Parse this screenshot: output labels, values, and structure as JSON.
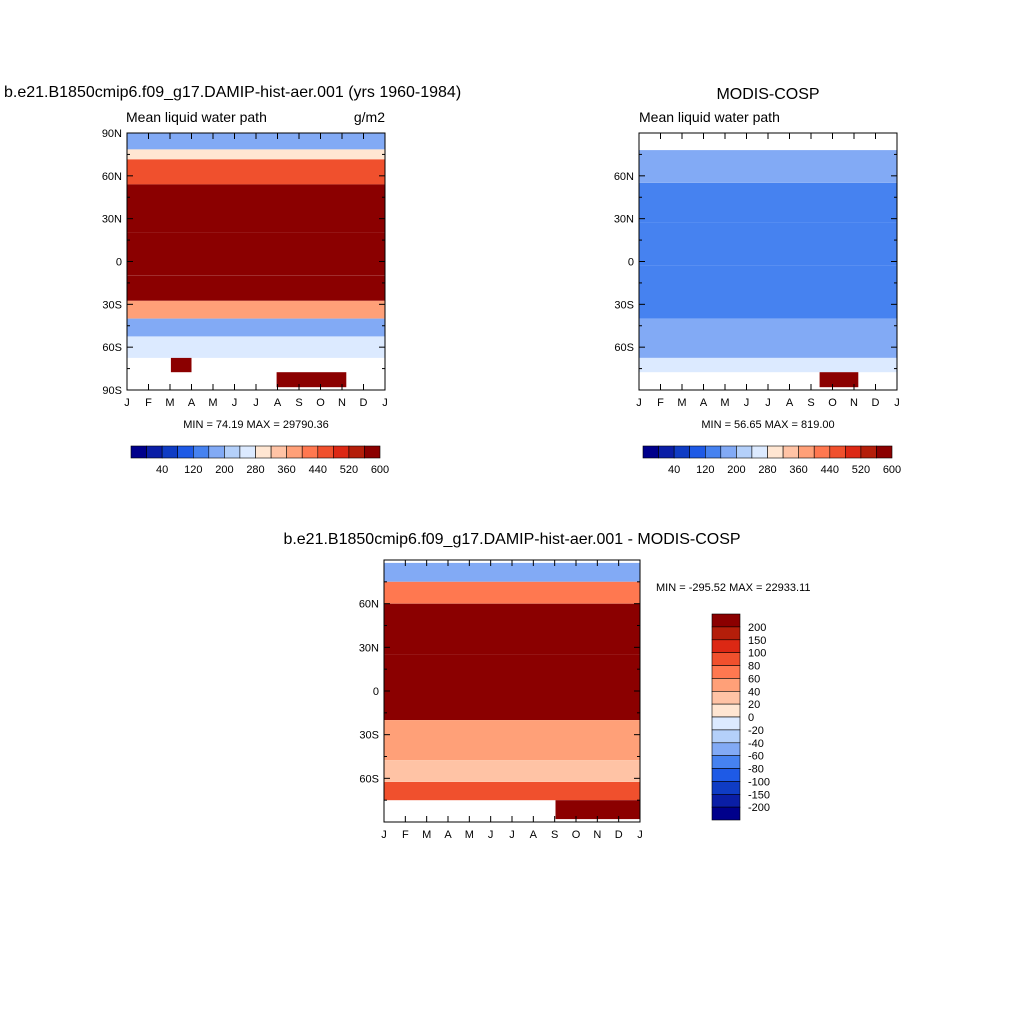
{
  "chart_data": [
    {
      "type": "heatmap",
      "title": "b.e21.B1850cmip6.f09_g17.DAMIP-hist-aer.001 (yrs 1960-1984)",
      "subtitle": "Mean liquid water path",
      "units": "g/m2",
      "x_ticks": [
        "J",
        "F",
        "M",
        "A",
        "M",
        "J",
        "J",
        "A",
        "S",
        "O",
        "N",
        "D",
        "J"
      ],
      "y_ticks": [
        "90N",
        "60N",
        "30N",
        "0",
        "30S",
        "60S",
        "90S"
      ],
      "ylim": [
        -90,
        90
      ],
      "stats": "MIN =  74.19 MAX = 29790.36",
      "colorbar": {
        "orientation": "horizontal",
        "labels": [
          "40",
          "120",
          "200",
          "280",
          "360",
          "440",
          "520",
          "600"
        ],
        "colors": [
          "#00008b",
          "#0a1ea6",
          "#0f3cc4",
          "#1e5ae6",
          "#4682f0",
          "#82aaf5",
          "#b4d0fa",
          "#dceaff",
          "#ffe6d2",
          "#ffc3a5",
          "#ffa078",
          "#ff7850",
          "#f0502d",
          "#dc2814",
          "#b41e0a",
          "#8b0000"
        ]
      },
      "rows": [
        {
          "lat": 82,
          "value": 170,
          "x_start": 0.0,
          "x_end": 1.0
        },
        {
          "lat": 75,
          "value": 300,
          "x_start": 0.0,
          "x_end": 1.0
        },
        {
          "lat": 68,
          "value": 470,
          "x_start": 0.0,
          "x_end": 1.0
        },
        {
          "lat": 40,
          "value": 650,
          "x_start": 0.0,
          "x_end": 1.0
        },
        {
          "lat": 0,
          "value": 650,
          "x_start": 0.0,
          "x_end": 1.0
        },
        {
          "lat": -20,
          "value": 560,
          "x_start": 0.0,
          "x_end": 1.0
        },
        {
          "lat": -35,
          "value": 380,
          "x_start": 0.0,
          "x_end": 1.0
        },
        {
          "lat": -45,
          "value": 160,
          "x_start": 0.0,
          "x_end": 1.0
        },
        {
          "lat": -60,
          "value": 240,
          "x_start": 0.0,
          "x_end": 1.0
        },
        {
          "lat": -75,
          "value": 650,
          "x_start": 0.17,
          "x_end": 0.25
        },
        {
          "lat": -80,
          "value": 650,
          "x_start": 0.58,
          "x_end": 0.85
        }
      ]
    },
    {
      "type": "heatmap",
      "title": "MODIS-COSP",
      "subtitle": "Mean liquid water path",
      "x_ticks": [
        "J",
        "F",
        "M",
        "A",
        "M",
        "J",
        "J",
        "A",
        "S",
        "O",
        "N",
        "D",
        "J"
      ],
      "y_ticks": [
        "60N",
        "30N",
        "0",
        "30S",
        "60S"
      ],
      "ylim": [
        -90,
        90
      ],
      "stats": "MIN =  56.65 MAX = 819.00",
      "colorbar": {
        "orientation": "horizontal",
        "labels": [
          "40",
          "120",
          "200",
          "280",
          "360",
          "440",
          "520",
          "600"
        ],
        "colors": [
          "#00008b",
          "#0a1ea6",
          "#0f3cc4",
          "#1e5ae6",
          "#4682f0",
          "#82aaf5",
          "#b4d0fa",
          "#dceaff",
          "#ffe6d2",
          "#ffc3a5",
          "#ffa078",
          "#ff7850",
          "#f0502d",
          "#dc2814",
          "#b41e0a",
          "#8b0000"
        ]
      },
      "rows": [
        {
          "lat": 70,
          "value": 180,
          "x_start": 0.0,
          "x_end": 1.0
        },
        {
          "lat": 40,
          "value": 150,
          "x_start": 0.0,
          "x_end": 1.0
        },
        {
          "lat": 15,
          "value": 120,
          "x_start": 0.0,
          "x_end": 1.0
        },
        {
          "lat": -20,
          "value": 130,
          "x_start": 0.0,
          "x_end": 1.0
        },
        {
          "lat": -60,
          "value": 170,
          "x_start": 0.0,
          "x_end": 1.0
        },
        {
          "lat": -75,
          "value": 260,
          "x_start": 0.0,
          "x_end": 1.0
        },
        {
          "lat": -80,
          "value": 560,
          "x_start": 0.7,
          "x_end": 0.85
        }
      ]
    },
    {
      "type": "heatmap",
      "title": "b.e21.B1850cmip6.f09_g17.DAMIP-hist-aer.001 - MODIS-COSP",
      "x_ticks": [
        "J",
        "F",
        "M",
        "A",
        "M",
        "J",
        "J",
        "A",
        "S",
        "O",
        "N",
        "D",
        "J"
      ],
      "y_ticks": [
        "60N",
        "30N",
        "0",
        "30S",
        "60S"
      ],
      "ylim": [
        -90,
        90
      ],
      "stats": "MIN = -295.52 MAX = 22933.11",
      "colorbar": {
        "orientation": "vertical",
        "labels": [
          "200",
          "150",
          "100",
          "80",
          "60",
          "40",
          "20",
          "0",
          "-20",
          "-40",
          "-60",
          "-80",
          "-100",
          "-150",
          "-200"
        ],
        "colors": [
          "#8b0000",
          "#b41e0a",
          "#dc2814",
          "#f0502d",
          "#ff7850",
          "#ffa078",
          "#ffc3a5",
          "#ffe6d2",
          "#dceaff",
          "#b4d0fa",
          "#82aaf5",
          "#4682f0",
          "#1e5ae6",
          "#0f3cc4",
          "#0a1ea6",
          "#00008b"
        ]
      },
      "rows": [
        {
          "lat": 80,
          "value": -60,
          "x_start": 0.0,
          "x_end": 1.0
        },
        {
          "lat": 70,
          "value": 60,
          "x_start": 0.0,
          "x_end": 1.0
        },
        {
          "lat": 50,
          "value": 250,
          "x_start": 0.0,
          "x_end": 1.0
        },
        {
          "lat": 0,
          "value": 250,
          "x_start": 0.0,
          "x_end": 1.0
        },
        {
          "lat": -40,
          "value": 40,
          "x_start": 0.0,
          "x_end": 1.0
        },
        {
          "lat": -55,
          "value": 30,
          "x_start": 0.0,
          "x_end": 1.0
        },
        {
          "lat": -70,
          "value": 90,
          "x_start": 0.0,
          "x_end": 1.0
        },
        {
          "lat": -80,
          "value": 250,
          "x_start": 0.67,
          "x_end": 1.0
        }
      ]
    }
  ]
}
